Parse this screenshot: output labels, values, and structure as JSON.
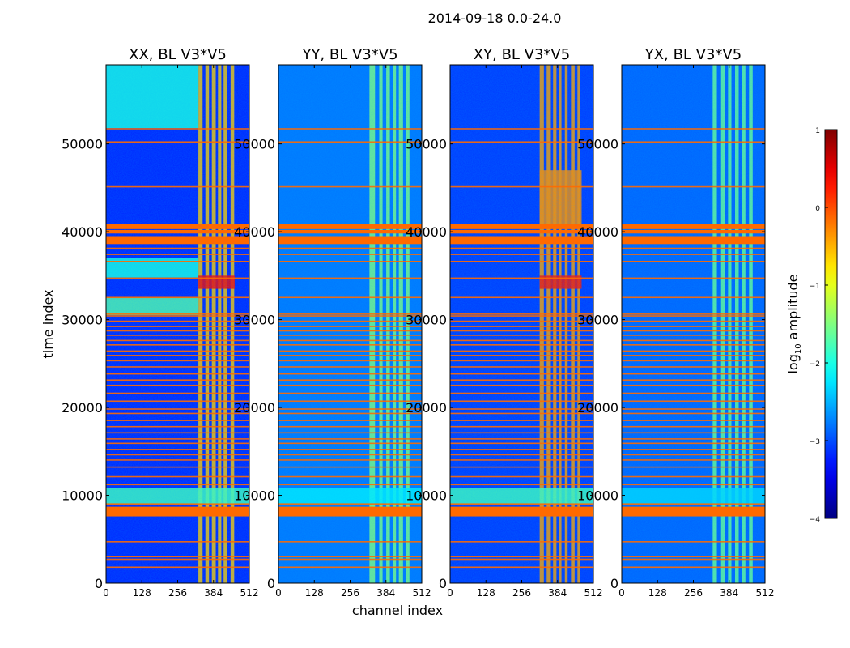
{
  "chart_data": {
    "type": "heatmap",
    "title": "2014-09-18 0.0-24.0",
    "xlabel": "channel index",
    "ylabel": "time index",
    "xlim": [
      0,
      512
    ],
    "ylim": [
      0,
      59000
    ],
    "x_ticks": [
      0,
      128,
      256,
      384,
      512
    ],
    "y_ticks": [
      0,
      10000,
      20000,
      30000,
      40000,
      50000
    ],
    "colorbar": {
      "label_prefix": "log",
      "label_sub": "10",
      "label_suffix": " amplitude",
      "range": [
        -4,
        1
      ],
      "ticks": [
        "1",
        "0",
        "−1",
        "−2",
        "−3",
        "−4"
      ],
      "colormap": "jet"
    },
    "flag_color": "#ff6a00",
    "flag_rows": [
      [
        7600,
        8700
      ],
      [
        38600,
        39500
      ],
      [
        39800,
        40200
      ],
      [
        40300,
        40900
      ]
    ],
    "thin_flag_rows": [
      1800,
      2700,
      3000,
      4700,
      9000,
      11200,
      12100,
      13200,
      14000,
      14600,
      15200,
      15900,
      16400,
      17100,
      17800,
      18500,
      19300,
      19800,
      20700,
      21600,
      22500,
      23100,
      23800,
      24600,
      25300,
      25900,
      26400,
      27100,
      27600,
      28200,
      28700,
      29200,
      29800,
      30400,
      30600,
      32500,
      34700,
      36600,
      37400,
      38100,
      45100,
      50200,
      51700
    ],
    "panels": [
      {
        "title": "XX, BL V3*V5",
        "base_level": -3.2,
        "rfi_channels": [
          [
            330,
            345
          ],
          [
            355,
            368
          ],
          [
            378,
            392
          ],
          [
            400,
            412
          ],
          [
            420,
            432
          ],
          [
            445,
            458
          ]
        ],
        "rfi_level": -0.6,
        "bright_segments": [
          {
            "t": [
              30500,
              32500
            ],
            "ch": [
              0,
              330
            ],
            "level": -1.7
          },
          {
            "t": [
              34800,
              37000
            ],
            "ch": [
              0,
              330
            ],
            "level": -2.0
          },
          {
            "t": [
              51800,
              59000
            ],
            "ch": [
              0,
              330
            ],
            "level": -2.0
          },
          {
            "t": [
              9000,
              10800
            ],
            "ch": [
              0,
              512
            ],
            "level": -1.8
          },
          {
            "t": [
              33500,
              35000
            ],
            "ch": [
              330,
              460
            ],
            "level": 0.4
          }
        ]
      },
      {
        "title": "YY, BL V3*V5",
        "base_level": -2.8,
        "rfi_channels": [
          [
            325,
            345
          ],
          [
            360,
            372
          ],
          [
            385,
            398
          ],
          [
            410,
            420
          ],
          [
            430,
            445
          ],
          [
            455,
            468
          ]
        ],
        "rfi_level": -1.5,
        "bright_segments": [
          {
            "t": [
              9000,
              10800
            ],
            "ch": [
              0,
              512
            ],
            "level": -2.2
          }
        ]
      },
      {
        "title": "XY, BL V3*V5",
        "base_level": -3.1,
        "rfi_channels": [
          [
            320,
            335
          ],
          [
            345,
            360
          ],
          [
            368,
            380
          ],
          [
            388,
            398
          ],
          [
            410,
            420
          ],
          [
            432,
            445
          ],
          [
            455,
            465
          ]
        ],
        "rfi_level": -0.4,
        "bright_segments": [
          {
            "t": [
              9000,
              10800
            ],
            "ch": [
              0,
              512
            ],
            "level": -1.8
          },
          {
            "t": [
              33500,
              35000
            ],
            "ch": [
              320,
              470
            ],
            "level": 0.3
          },
          {
            "t": [
              40500,
              47000
            ],
            "ch": [
              320,
              470
            ],
            "level": -0.3
          }
        ]
      },
      {
        "title": "YX, BL V3*V5",
        "base_level": -2.9,
        "rfi_channels": [
          [
            325,
            340
          ],
          [
            355,
            368
          ],
          [
            380,
            392
          ],
          [
            405,
            418
          ],
          [
            430,
            442
          ],
          [
            455,
            468
          ]
        ],
        "rfi_level": -1.6,
        "bright_segments": [
          {
            "t": [
              9000,
              10800
            ],
            "ch": [
              0,
              512
            ],
            "level": -2.3
          }
        ]
      }
    ]
  }
}
